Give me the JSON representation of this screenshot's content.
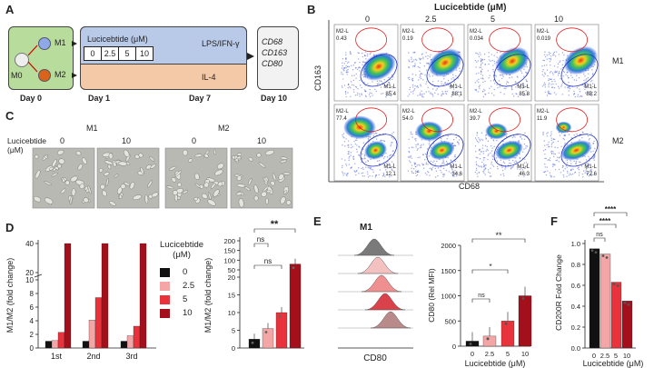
{
  "panels": {
    "A": "A",
    "B": "B",
    "C": "C",
    "D": "D",
    "E": "E",
    "F": "F"
  },
  "schematic": {
    "m0": "M0",
    "m1": "M1",
    "m2": "M2",
    "lucicebtide": "Lucicebtide (μM)",
    "doses": [
      "0",
      "2.5",
      "5",
      "10"
    ],
    "lps": "LPS/IFN-γ",
    "il4": "IL-4",
    "markers": [
      "CD68",
      "CD163",
      "CD80"
    ],
    "days": [
      "Day 0",
      "Day 1",
      "Day 7",
      "Day 10"
    ]
  },
  "flow": {
    "title": "Lucicebtide (μM)",
    "cols": [
      "0",
      "2.5",
      "5",
      "10"
    ],
    "row_labels": [
      "M1",
      "M2"
    ],
    "ylabel": "CD163",
    "xlabel": "CD68",
    "gate_m2": "M2-L",
    "gate_m1": "M1-L",
    "row1": {
      "m2": [
        "0.43",
        "0.19",
        "0.034",
        "0.019"
      ],
      "m1": [
        "85.4",
        "88.1",
        "85.8",
        "88.2"
      ]
    },
    "row2": {
      "m2": [
        "77.4",
        "54.0",
        "39.7",
        "11.9"
      ],
      "m1": [
        "12.1",
        "34.6",
        "46.3",
        "72.6"
      ]
    }
  },
  "micro": {
    "label_line1": "Lucicebtide",
    "label_line2": "(μM)",
    "groups": [
      "M1",
      "M2"
    ],
    "doses": [
      "0",
      "10",
      "0",
      "10"
    ]
  },
  "colors": {
    "d0": "#111111",
    "d25": "#f4a6a6",
    "d5": "#e8323c",
    "d10": "#a3101c"
  },
  "chart_data": [
    {
      "type": "bar",
      "panel": "D-left",
      "ylabel": "M1/M2 (fold change)",
      "categories": [
        "1st",
        "2nd",
        "3rd"
      ],
      "series": [
        {
          "name": "0",
          "values": [
            1,
            1,
            1
          ]
        },
        {
          "name": "2.5",
          "values": [
            1.1,
            4.1,
            1.8
          ]
        },
        {
          "name": "5",
          "values": [
            2.3,
            7.4,
            3.2
          ]
        },
        {
          "name": "10",
          "values": [
            40,
            40,
            42
          ]
        }
      ],
      "yticks": [
        "0",
        "2",
        "4",
        "6",
        "8",
        "10",
        "20",
        "40"
      ]
    },
    {
      "type": "bar",
      "panel": "D-right",
      "ylabel": "M1/M2 (fold change)",
      "categories": [
        "0",
        "2.5",
        "5",
        "10"
      ],
      "values": [
        2.5,
        5.5,
        10,
        80
      ],
      "yticks": [
        "0",
        "5",
        "10",
        "15",
        "20",
        "50",
        "100",
        "150",
        "200"
      ],
      "annotations": [
        "ns",
        "ns",
        "**"
      ]
    },
    {
      "type": "bar",
      "panel": "E",
      "ylabel": "CD80 (Rel MFI)",
      "xlabel": "Lucicebtide (μM)",
      "categories": [
        "0",
        "2.5",
        "5",
        "10"
      ],
      "values": [
        100,
        200,
        500,
        1000
      ],
      "yticks": [
        "0",
        "500",
        "1000",
        "1500",
        "2000"
      ],
      "ylim": [
        0,
        2000
      ],
      "annotations": [
        "ns",
        "*",
        "**"
      ],
      "histogram_title": "M1",
      "histogram_xlabel": "CD80"
    },
    {
      "type": "bar",
      "panel": "F",
      "ylabel": "CD200R Fold Change",
      "xlabel": "Lucicebtide (μM)",
      "categories": [
        "0",
        "2.5",
        "5",
        "10"
      ],
      "values": [
        0.95,
        0.9,
        0.63,
        0.45
      ],
      "yticks": [
        "0.0",
        "0.2",
        "0.4",
        "0.6",
        "0.8",
        "1.0"
      ],
      "ylim": [
        0,
        1.05
      ],
      "annotations": [
        "ns",
        "****",
        "****"
      ]
    }
  ],
  "legend": {
    "title_line1": "Lucicebtide",
    "title_line2": "(μM)",
    "items": [
      "0",
      "2.5",
      "5",
      "10"
    ]
  }
}
